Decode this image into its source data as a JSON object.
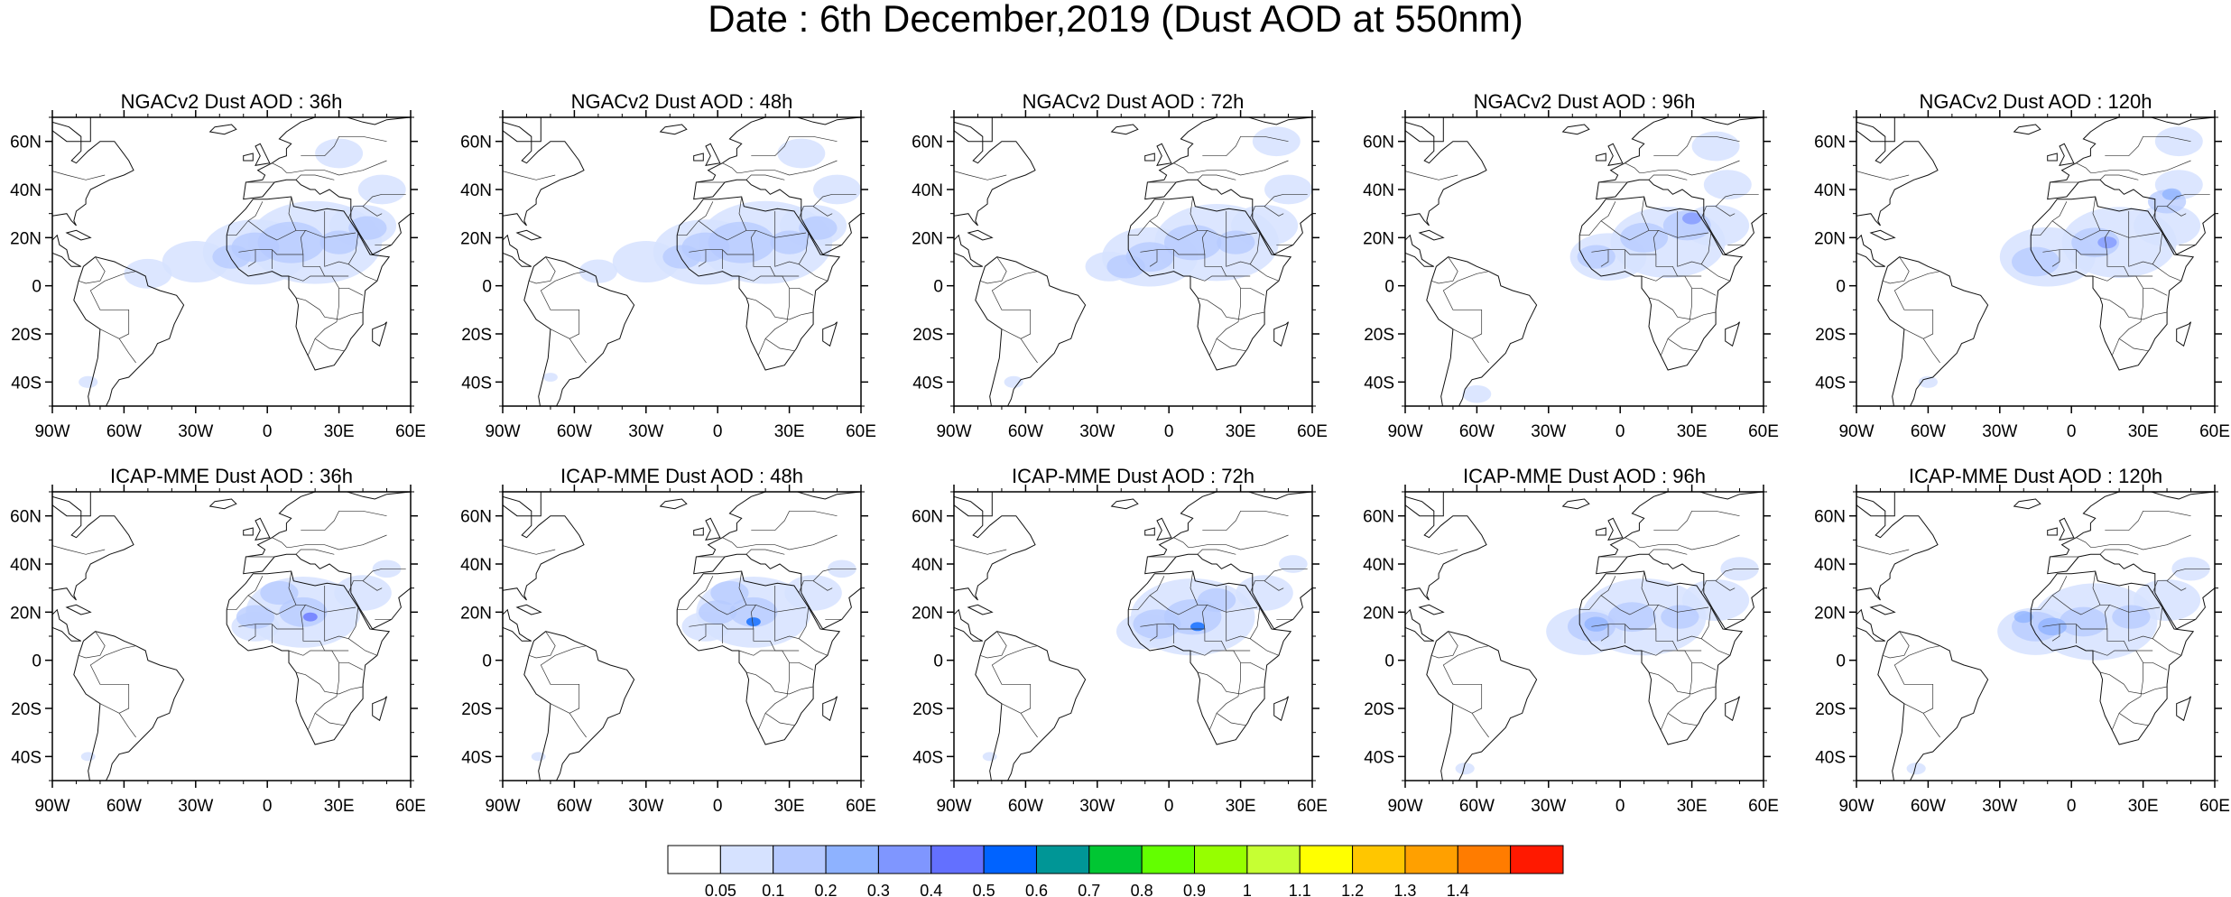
{
  "title": "Date : 6th December,2019 (Dust AOD at 550nm)",
  "panels": [
    {
      "model": "NGACv2",
      "lead": "36h",
      "title": "NGACv2 Dust AOD : 36h"
    },
    {
      "model": "NGACv2",
      "lead": "48h",
      "title": "NGACv2 Dust AOD : 48h"
    },
    {
      "model": "NGACv2",
      "lead": "72h",
      "title": "NGACv2 Dust AOD : 72h"
    },
    {
      "model": "NGACv2",
      "lead": "96h",
      "title": "NGACv2 Dust AOD : 96h"
    },
    {
      "model": "NGACv2",
      "lead": "120h",
      "title": "NGACv2 Dust AOD : 120h"
    },
    {
      "model": "ICAP-MME",
      "lead": "36h",
      "title": "ICAP-MME Dust AOD : 36h"
    },
    {
      "model": "ICAP-MME",
      "lead": "48h",
      "title": "ICAP-MME Dust AOD : 48h"
    },
    {
      "model": "ICAP-MME",
      "lead": "72h",
      "title": "ICAP-MME Dust AOD : 72h"
    },
    {
      "model": "ICAP-MME",
      "lead": "96h",
      "title": "ICAP-MME Dust AOD : 96h"
    },
    {
      "model": "ICAP-MME",
      "lead": "120h",
      "title": "ICAP-MME Dust AOD : 120h"
    }
  ],
  "lon_ticks": [
    "90W",
    "60W",
    "30W",
    "0",
    "30E",
    "60E"
  ],
  "lat_ticks": [
    "60N",
    "40N",
    "20N",
    "0",
    "20S",
    "40S"
  ],
  "extent": {
    "lon": [
      -90,
      60
    ],
    "lat": [
      -50,
      70
    ]
  },
  "colorbar": {
    "labels": [
      "0.05",
      "0.1",
      "0.2",
      "0.3",
      "0.4",
      "0.5",
      "0.6",
      "0.7",
      "0.8",
      "0.9",
      "1",
      "1.1",
      "1.2",
      "1.3",
      "1.4"
    ],
    "colors": [
      "#ffffff",
      "#d6e2ff",
      "#b5c9ff",
      "#8eb2ff",
      "#7f96ff",
      "#6370ff",
      "#0063ff",
      "#009696",
      "#00c633",
      "#63ff00",
      "#96ff00",
      "#c6ff33",
      "#ffff00",
      "#ffc600",
      "#ffa000",
      "#ff7c00",
      "#ff1900"
    ]
  }
}
